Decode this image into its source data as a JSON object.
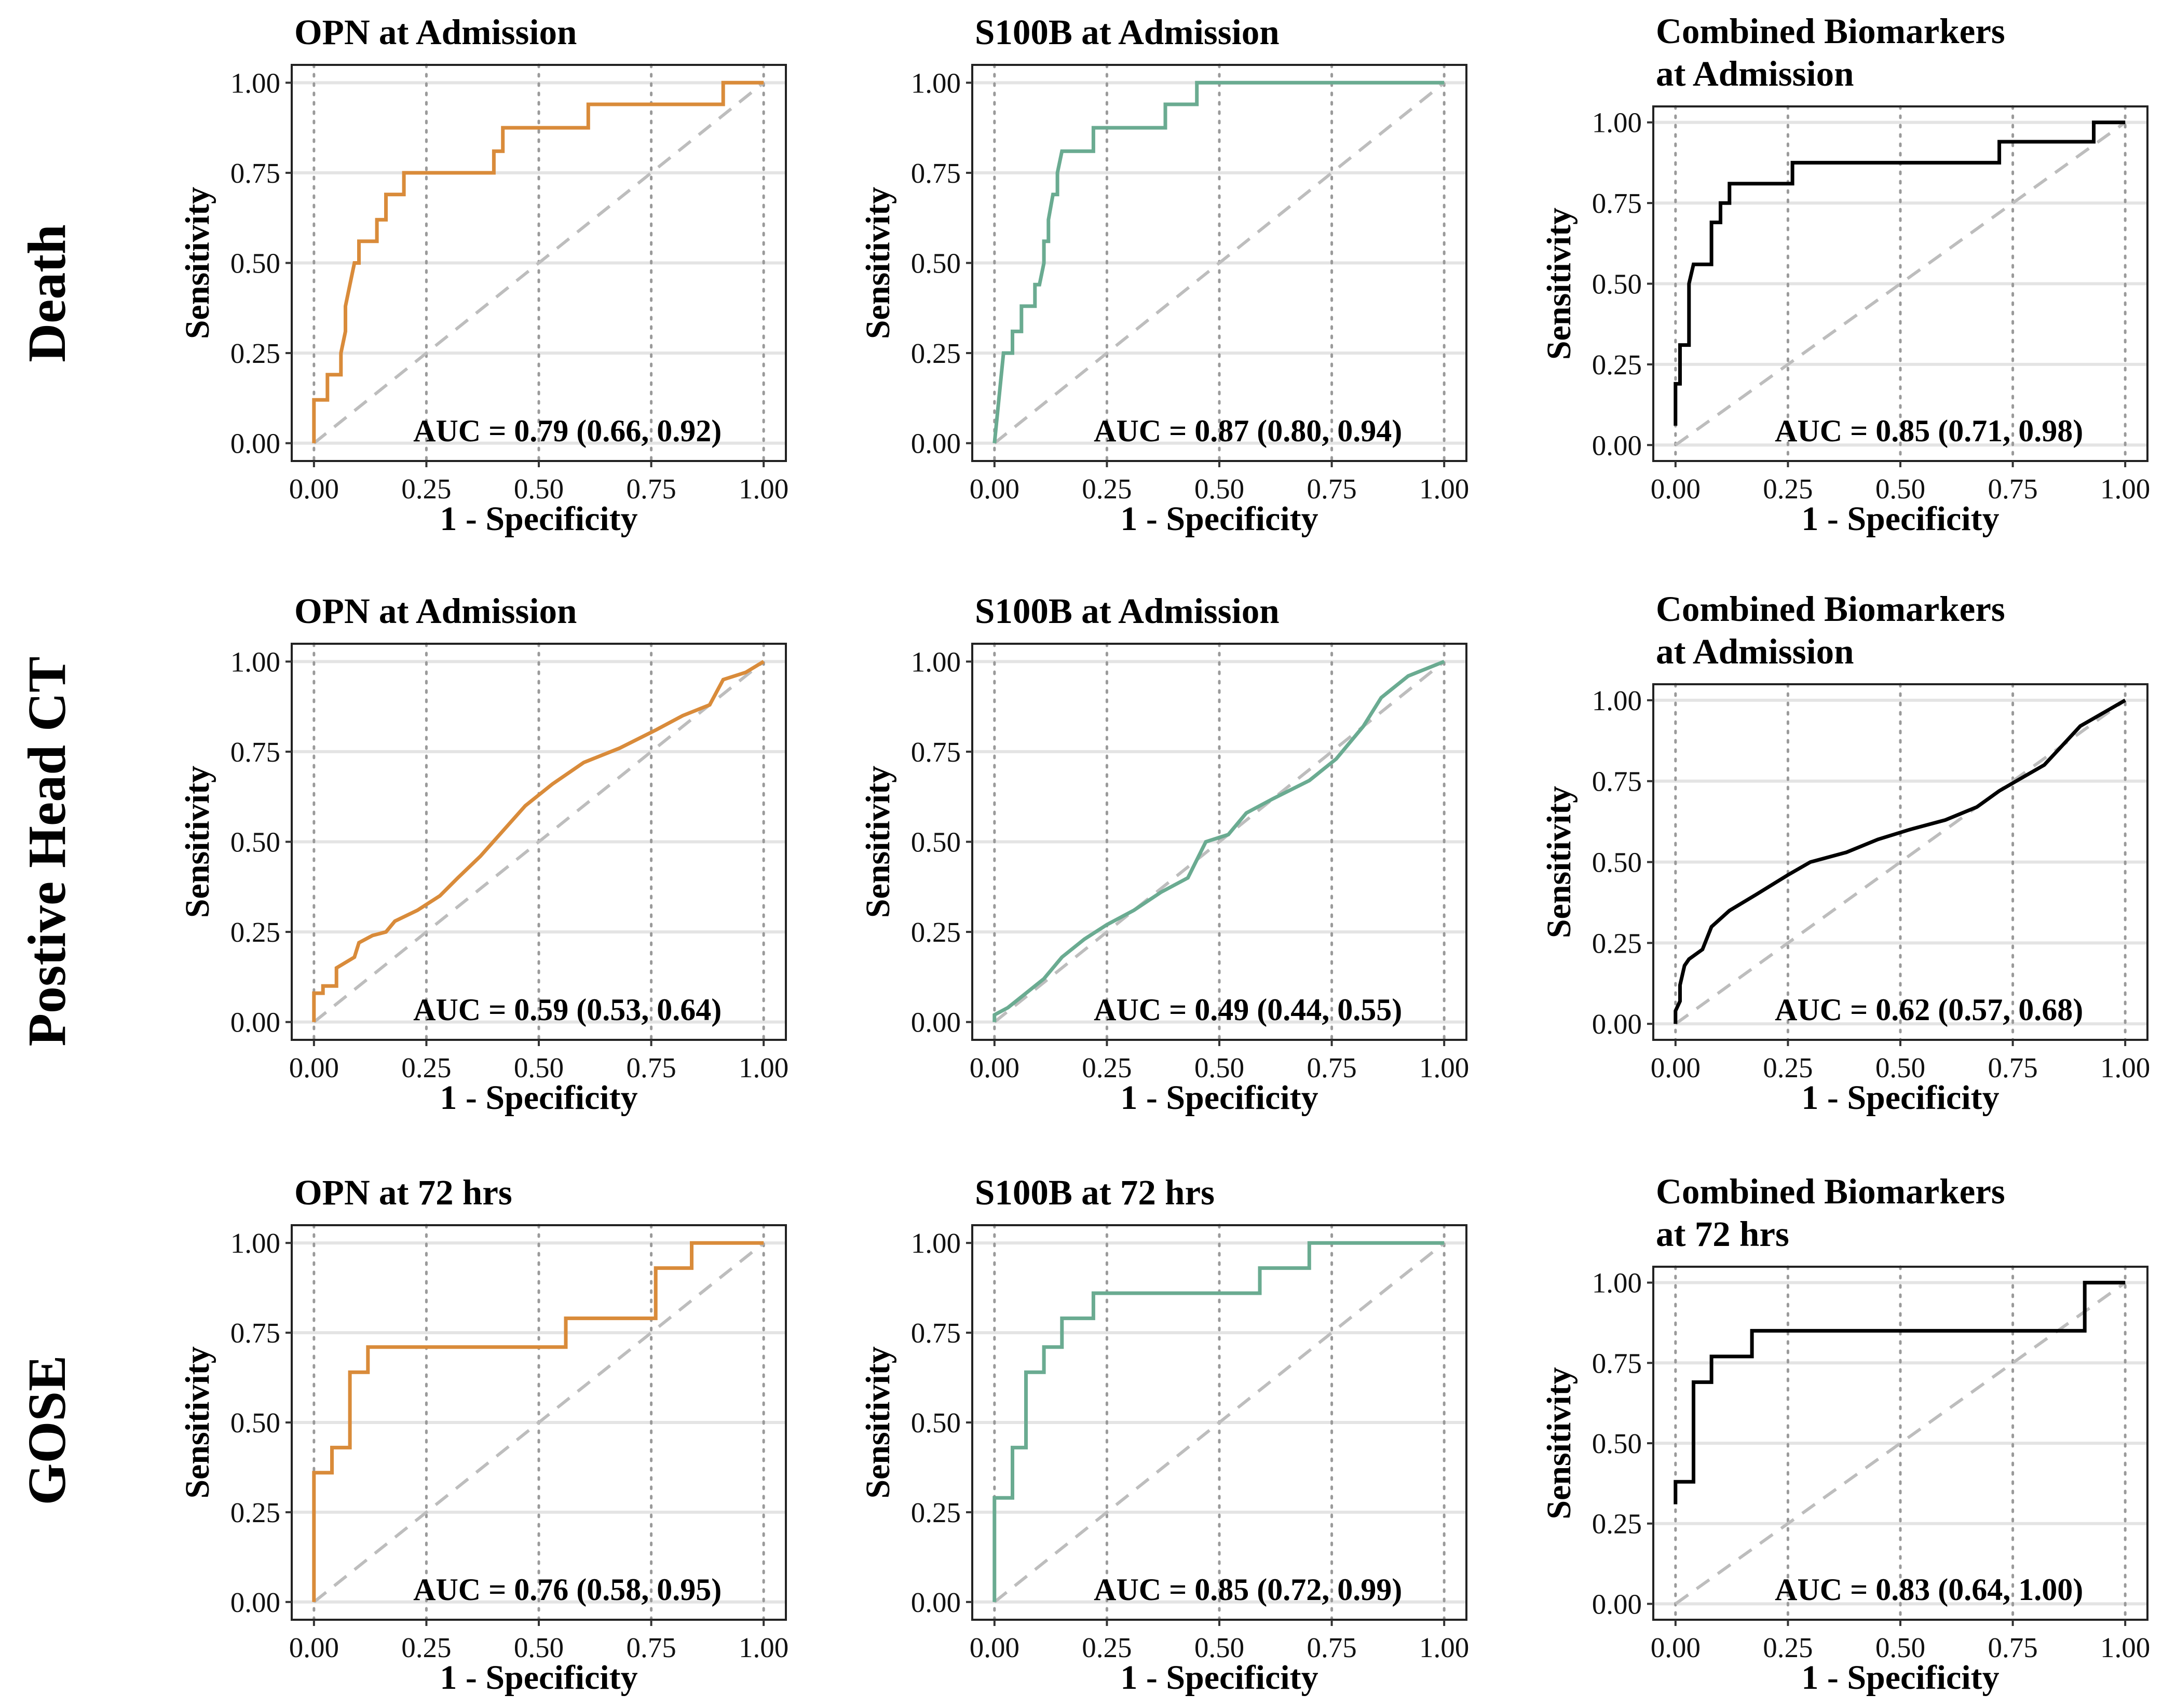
{
  "chart_data": {
    "type": "line",
    "layout": "3x3 grid of ROC curves",
    "row_labels": [
      "Death",
      "Postive Head CT",
      "GOSE"
    ],
    "colors": {
      "OPN": "#d98b3a",
      "S100B": "#6aab91",
      "Combined": "#000000",
      "reference": "#bdbdbd"
    },
    "xlabel": "1 - Specificity",
    "ylabel": "Sensitivity",
    "xlim": [
      0,
      1
    ],
    "ylim": [
      0,
      1
    ],
    "ticks": [
      "0.00",
      "0.25",
      "0.50",
      "0.75",
      "1.00"
    ],
    "panels": [
      {
        "row": 0,
        "col": 0,
        "title": [
          "OPN at Admission"
        ],
        "marker": "OPN",
        "auc": "AUC = 0.79 (0.66, 0.92)",
        "series": "opn-death",
        "points": [
          [
            0,
            0
          ],
          [
            0,
            0.12
          ],
          [
            0.03,
            0.12
          ],
          [
            0.03,
            0.19
          ],
          [
            0.06,
            0.19
          ],
          [
            0.06,
            0.25
          ],
          [
            0.07,
            0.31
          ],
          [
            0.07,
            0.38
          ],
          [
            0.08,
            0.44
          ],
          [
            0.09,
            0.5
          ],
          [
            0.1,
            0.5
          ],
          [
            0.1,
            0.56
          ],
          [
            0.14,
            0.56
          ],
          [
            0.14,
            0.62
          ],
          [
            0.16,
            0.62
          ],
          [
            0.16,
            0.69
          ],
          [
            0.2,
            0.69
          ],
          [
            0.2,
            0.75
          ],
          [
            0.4,
            0.75
          ],
          [
            0.4,
            0.81
          ],
          [
            0.42,
            0.81
          ],
          [
            0.42,
            0.875
          ],
          [
            0.61,
            0.875
          ],
          [
            0.61,
            0.94
          ],
          [
            0.91,
            0.94
          ],
          [
            0.91,
            1
          ],
          [
            1,
            1
          ]
        ]
      },
      {
        "row": 0,
        "col": 1,
        "title": [
          "S100B at Admission"
        ],
        "marker": "S100B",
        "auc": "AUC = 0.87 (0.80, 0.94)",
        "series": "s100b-death",
        "points": [
          [
            0,
            0
          ],
          [
            0.02,
            0.25
          ],
          [
            0.04,
            0.25
          ],
          [
            0.04,
            0.31
          ],
          [
            0.06,
            0.31
          ],
          [
            0.06,
            0.38
          ],
          [
            0.09,
            0.38
          ],
          [
            0.09,
            0.44
          ],
          [
            0.1,
            0.44
          ],
          [
            0.11,
            0.5
          ],
          [
            0.11,
            0.56
          ],
          [
            0.12,
            0.56
          ],
          [
            0.12,
            0.62
          ],
          [
            0.13,
            0.69
          ],
          [
            0.14,
            0.69
          ],
          [
            0.14,
            0.75
          ],
          [
            0.15,
            0.81
          ],
          [
            0.22,
            0.81
          ],
          [
            0.22,
            0.875
          ],
          [
            0.38,
            0.875
          ],
          [
            0.38,
            0.94
          ],
          [
            0.45,
            0.94
          ],
          [
            0.45,
            1
          ],
          [
            1,
            1
          ]
        ]
      },
      {
        "row": 0,
        "col": 2,
        "title": [
          "Combined Biomarkers",
          "at Admission"
        ],
        "marker": "Combined",
        "auc": "AUC = 0.85 (0.71, 0.98)",
        "series": "combined-death",
        "points": [
          [
            0,
            0.06
          ],
          [
            0,
            0.19
          ],
          [
            0.01,
            0.19
          ],
          [
            0.01,
            0.25
          ],
          [
            0.01,
            0.31
          ],
          [
            0.03,
            0.31
          ],
          [
            0.03,
            0.5
          ],
          [
            0.04,
            0.56
          ],
          [
            0.08,
            0.56
          ],
          [
            0.08,
            0.69
          ],
          [
            0.1,
            0.69
          ],
          [
            0.1,
            0.75
          ],
          [
            0.12,
            0.75
          ],
          [
            0.12,
            0.81
          ],
          [
            0.26,
            0.81
          ],
          [
            0.26,
            0.875
          ],
          [
            0.72,
            0.875
          ],
          [
            0.72,
            0.94
          ],
          [
            0.93,
            0.94
          ],
          [
            0.93,
            1
          ],
          [
            1,
            1
          ]
        ]
      },
      {
        "row": 1,
        "col": 0,
        "title": [
          "OPN at Admission"
        ],
        "marker": "OPN",
        "auc": "AUC = 0.59 (0.53, 0.64)",
        "series": "opn-ct",
        "points": [
          [
            0,
            0
          ],
          [
            0,
            0.08
          ],
          [
            0.02,
            0.08
          ],
          [
            0.02,
            0.1
          ],
          [
            0.05,
            0.1
          ],
          [
            0.05,
            0.15
          ],
          [
            0.09,
            0.18
          ],
          [
            0.1,
            0.22
          ],
          [
            0.13,
            0.24
          ],
          [
            0.16,
            0.25
          ],
          [
            0.18,
            0.28
          ],
          [
            0.23,
            0.31
          ],
          [
            0.28,
            0.35
          ],
          [
            0.32,
            0.4
          ],
          [
            0.37,
            0.46
          ],
          [
            0.42,
            0.53
          ],
          [
            0.47,
            0.6
          ],
          [
            0.53,
            0.66
          ],
          [
            0.6,
            0.72
          ],
          [
            0.68,
            0.76
          ],
          [
            0.76,
            0.81
          ],
          [
            0.82,
            0.85
          ],
          [
            0.88,
            0.88
          ],
          [
            0.91,
            0.95
          ],
          [
            0.96,
            0.97
          ],
          [
            1,
            1
          ]
        ]
      },
      {
        "row": 1,
        "col": 1,
        "title": [
          "S100B at Admission"
        ],
        "marker": "S100B",
        "auc": "AUC = 0.49 (0.44, 0.55)",
        "series": "s100b-ct",
        "points": [
          [
            0,
            0
          ],
          [
            0,
            0.02
          ],
          [
            0.03,
            0.04
          ],
          [
            0.07,
            0.08
          ],
          [
            0.11,
            0.12
          ],
          [
            0.15,
            0.18
          ],
          [
            0.2,
            0.23
          ],
          [
            0.25,
            0.27
          ],
          [
            0.31,
            0.31
          ],
          [
            0.37,
            0.36
          ],
          [
            0.43,
            0.4
          ],
          [
            0.47,
            0.5
          ],
          [
            0.52,
            0.52
          ],
          [
            0.56,
            0.58
          ],
          [
            0.62,
            0.62
          ],
          [
            0.7,
            0.67
          ],
          [
            0.76,
            0.73
          ],
          [
            0.82,
            0.82
          ],
          [
            0.86,
            0.9
          ],
          [
            0.92,
            0.96
          ],
          [
            1,
            1
          ]
        ]
      },
      {
        "row": 1,
        "col": 2,
        "title": [
          "Combined Biomarkers",
          "at Admission"
        ],
        "marker": "Combined",
        "auc": "AUC = 0.62 (0.57, 0.68)",
        "series": "combined-ct",
        "points": [
          [
            0,
            0
          ],
          [
            0,
            0.04
          ],
          [
            0.01,
            0.07
          ],
          [
            0.01,
            0.12
          ],
          [
            0.02,
            0.18
          ],
          [
            0.03,
            0.2
          ],
          [
            0.06,
            0.23
          ],
          [
            0.08,
            0.3
          ],
          [
            0.12,
            0.35
          ],
          [
            0.18,
            0.4
          ],
          [
            0.25,
            0.46
          ],
          [
            0.3,
            0.5
          ],
          [
            0.38,
            0.53
          ],
          [
            0.45,
            0.57
          ],
          [
            0.52,
            0.6
          ],
          [
            0.6,
            0.63
          ],
          [
            0.67,
            0.67
          ],
          [
            0.72,
            0.72
          ],
          [
            0.77,
            0.76
          ],
          [
            0.82,
            0.8
          ],
          [
            0.86,
            0.86
          ],
          [
            0.9,
            0.92
          ],
          [
            0.95,
            0.96
          ],
          [
            1,
            1
          ]
        ]
      },
      {
        "row": 2,
        "col": 0,
        "title": [
          "OPN at 72 hrs"
        ],
        "marker": "OPN",
        "auc": "AUC = 0.76 (0.58, 0.95)",
        "series": "opn-gose",
        "points": [
          [
            0,
            0
          ],
          [
            0,
            0.36
          ],
          [
            0.04,
            0.36
          ],
          [
            0.04,
            0.43
          ],
          [
            0.08,
            0.43
          ],
          [
            0.08,
            0.64
          ],
          [
            0.12,
            0.64
          ],
          [
            0.12,
            0.71
          ],
          [
            0.56,
            0.71
          ],
          [
            0.56,
            0.79
          ],
          [
            0.76,
            0.79
          ],
          [
            0.76,
            0.93
          ],
          [
            0.84,
            0.93
          ],
          [
            0.84,
            1
          ],
          [
            1,
            1
          ]
        ]
      },
      {
        "row": 2,
        "col": 1,
        "title": [
          "S100B at 72 hrs"
        ],
        "marker": "S100B",
        "auc": "AUC = 0.85 (0.72, 0.99)",
        "series": "s100b-gose",
        "points": [
          [
            0,
            0
          ],
          [
            0,
            0.29
          ],
          [
            0.04,
            0.29
          ],
          [
            0.04,
            0.43
          ],
          [
            0.07,
            0.43
          ],
          [
            0.07,
            0.64
          ],
          [
            0.11,
            0.64
          ],
          [
            0.11,
            0.71
          ],
          [
            0.15,
            0.71
          ],
          [
            0.15,
            0.79
          ],
          [
            0.22,
            0.79
          ],
          [
            0.22,
            0.86
          ],
          [
            0.59,
            0.86
          ],
          [
            0.59,
            0.93
          ],
          [
            0.7,
            0.93
          ],
          [
            0.7,
            1
          ],
          [
            1,
            1
          ]
        ]
      },
      {
        "row": 2,
        "col": 2,
        "title": [
          "Combined Biomarkers",
          "at 72 hrs"
        ],
        "marker": "Combined",
        "auc": "AUC = 0.83 (0.64, 1.00)",
        "series": "combined-gose",
        "points": [
          [
            0,
            0.31
          ],
          [
            0,
            0.38
          ],
          [
            0.04,
            0.38
          ],
          [
            0.04,
            0.69
          ],
          [
            0.08,
            0.69
          ],
          [
            0.08,
            0.77
          ],
          [
            0.17,
            0.77
          ],
          [
            0.17,
            0.85
          ],
          [
            0.91,
            0.85
          ],
          [
            0.91,
            1
          ],
          [
            1,
            1
          ]
        ]
      }
    ]
  }
}
